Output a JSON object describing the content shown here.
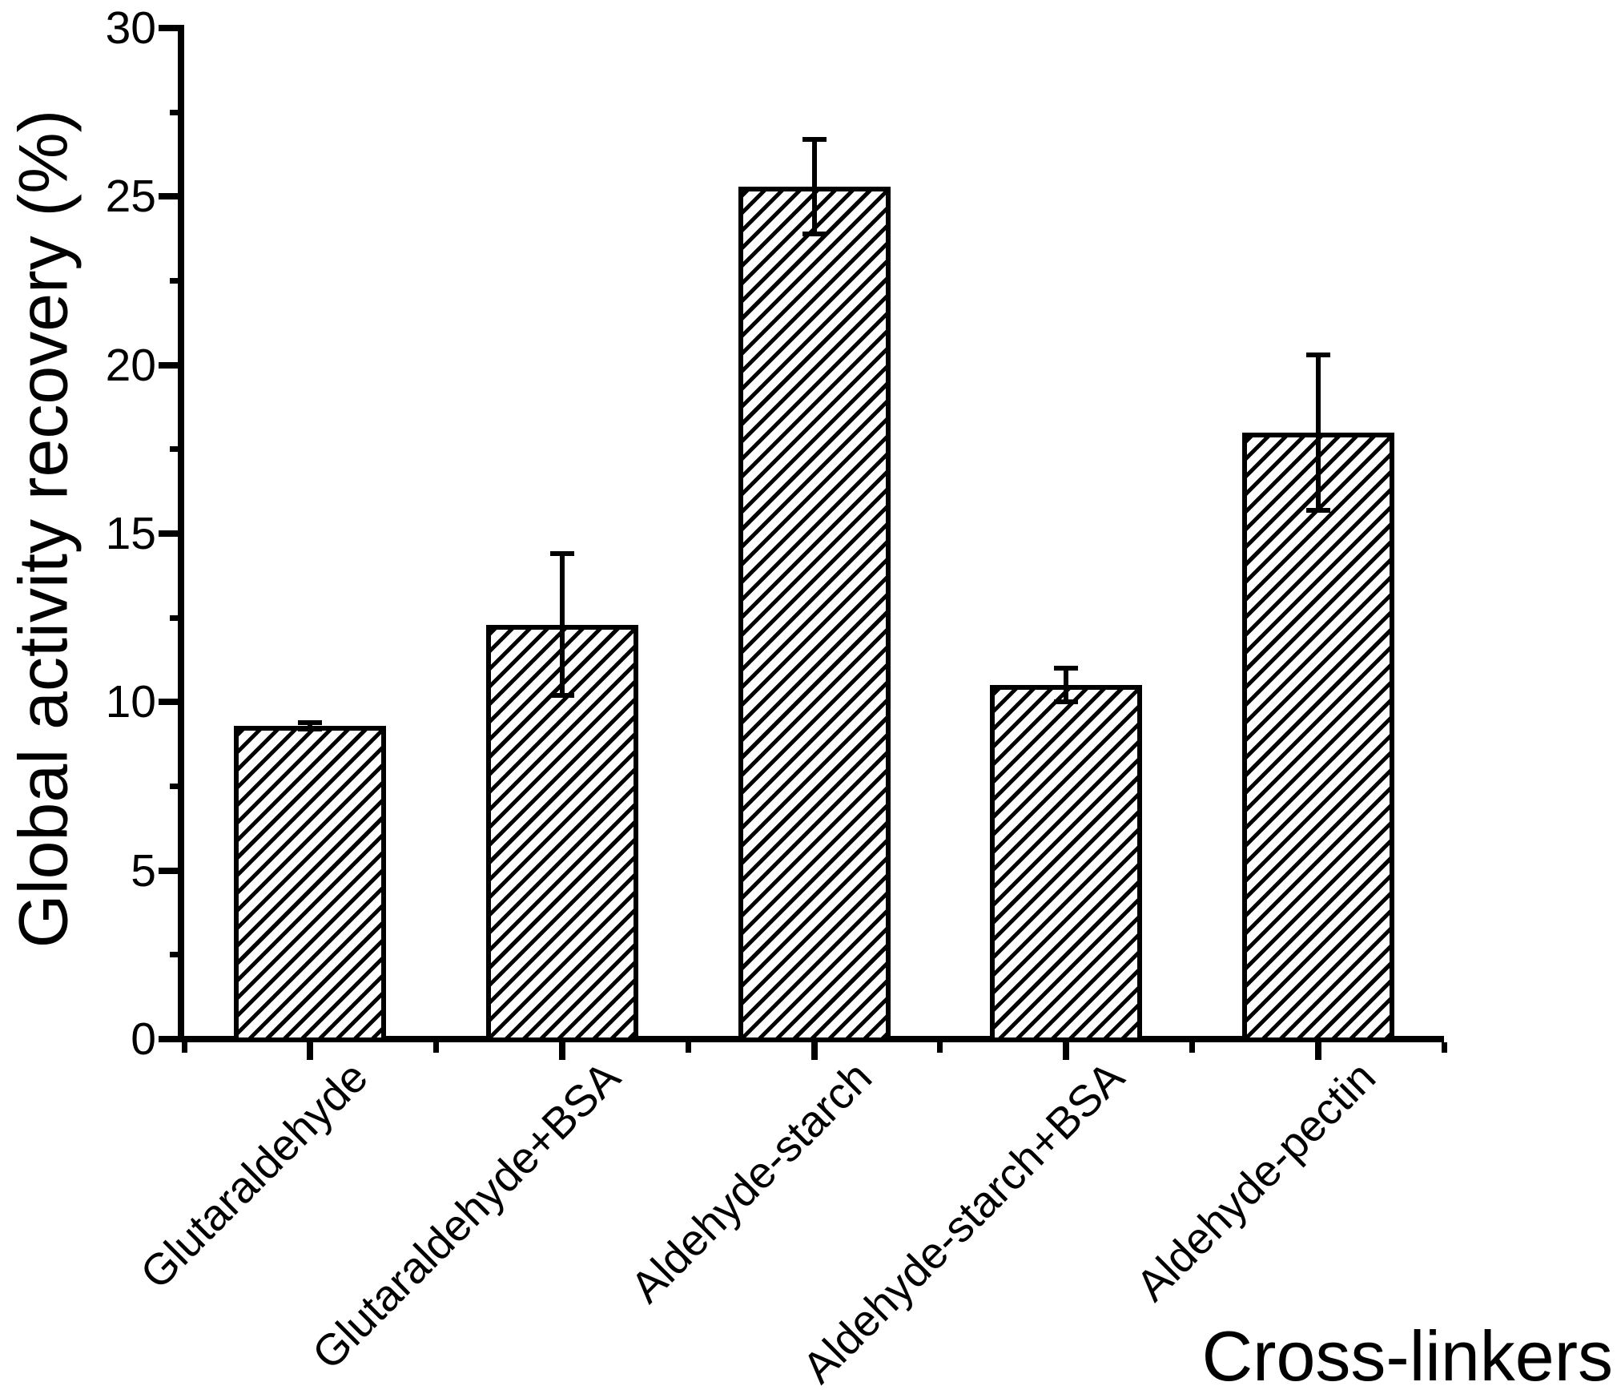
{
  "chart_data": {
    "type": "bar",
    "title": "",
    "xlabel": "Cross-linkers",
    "ylabel": "Global activity recovery (%)",
    "categories": [
      "Glutaraldehyde",
      "Glutaraldehyde+BSA",
      "Aldehyde-starch",
      "Aldehyde-starch+BSA",
      "Aldehyde-pectin"
    ],
    "values": [
      9.3,
      12.3,
      25.3,
      10.5,
      18.0
    ],
    "error_bars": [
      0.1,
      2.1,
      1.4,
      0.5,
      2.3
    ],
    "ylim": [
      0,
      30
    ],
    "y_major_ticks": [
      0,
      5,
      10,
      15,
      20,
      25,
      30
    ],
    "y_minor_step": 2.5,
    "bar_style": "diagonal-hatch",
    "legend_position": "none",
    "grid": false,
    "colors": {
      "ink": "#000000",
      "background": "#ffffff"
    }
  }
}
